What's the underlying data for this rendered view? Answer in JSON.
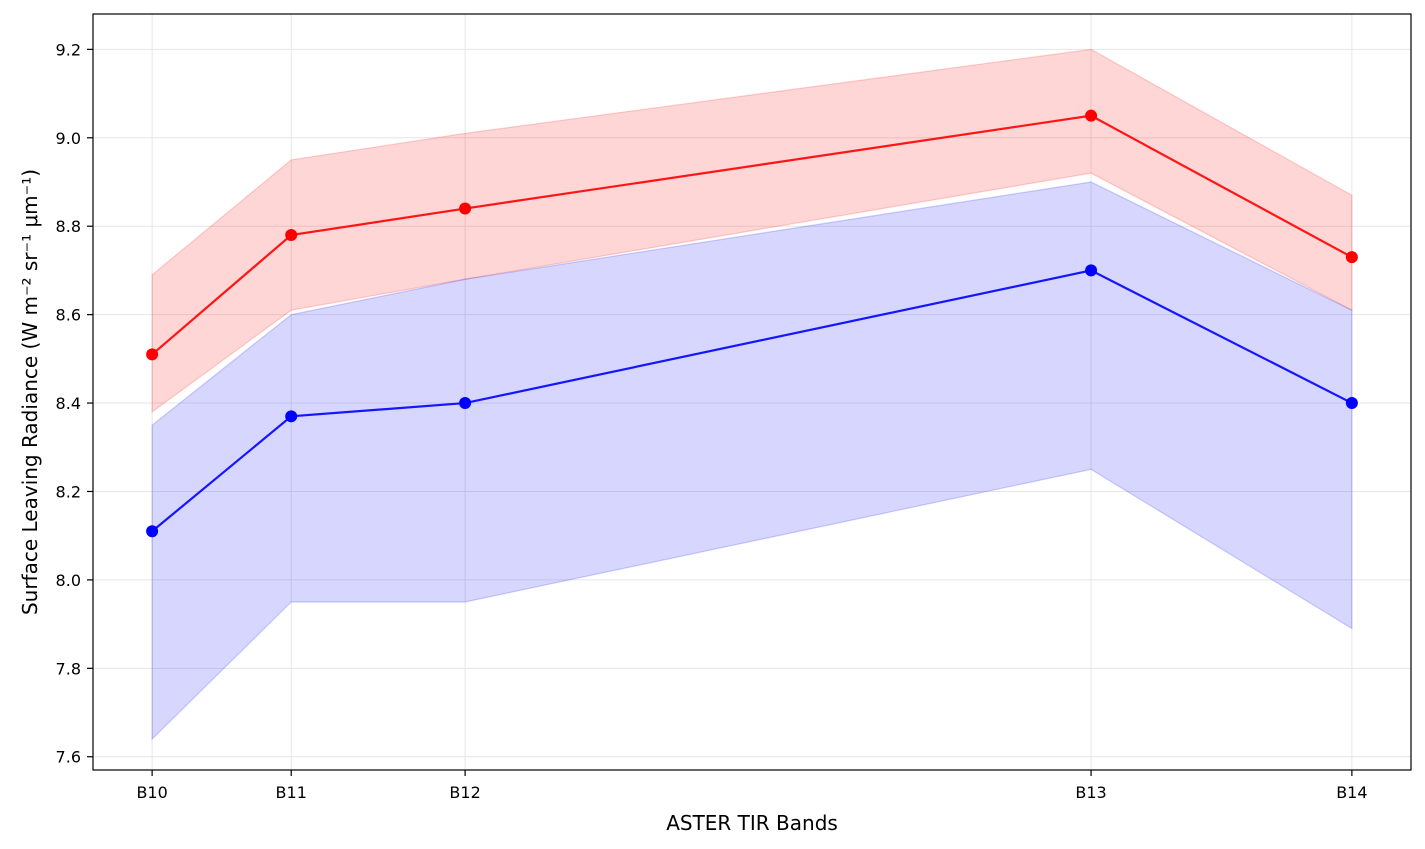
{
  "chart_data": {
    "type": "line",
    "title": "",
    "xlabel": "ASTER TIR Bands",
    "ylabel": "Surface Leaving Radiance (W m⁻² sr⁻¹ μm⁻¹)",
    "x": [
      10.25,
      10.65,
      11.15,
      12.95,
      13.7
    ],
    "x_tick_labels": [
      "B10",
      "B11",
      "B12",
      "B13",
      "B14"
    ],
    "xlim": [
      10.08,
      13.87
    ],
    "ylim": [
      7.57,
      9.28
    ],
    "yticks": [
      7.6,
      7.8,
      8.0,
      8.2,
      8.4,
      8.6,
      8.8,
      9.0,
      9.2
    ],
    "grid": true,
    "legend": false,
    "series": [
      {
        "color": "#ff0000",
        "fill_color": "#ff0000",
        "values": [
          8.51,
          8.78,
          8.84,
          9.05,
          8.73
        ],
        "upper": [
          8.69,
          8.95,
          9.01,
          9.2,
          8.87
        ],
        "lower": [
          8.38,
          8.61,
          8.68,
          8.92,
          8.61
        ]
      },
      {
        "color": "#0000ff",
        "fill_color": "#0000ff",
        "values": [
          8.11,
          8.37,
          8.4,
          8.7,
          8.4
        ],
        "upper": [
          8.35,
          8.6,
          8.68,
          8.9,
          8.61
        ],
        "lower": [
          7.64,
          7.95,
          7.95,
          8.25,
          7.89
        ]
      }
    ]
  }
}
